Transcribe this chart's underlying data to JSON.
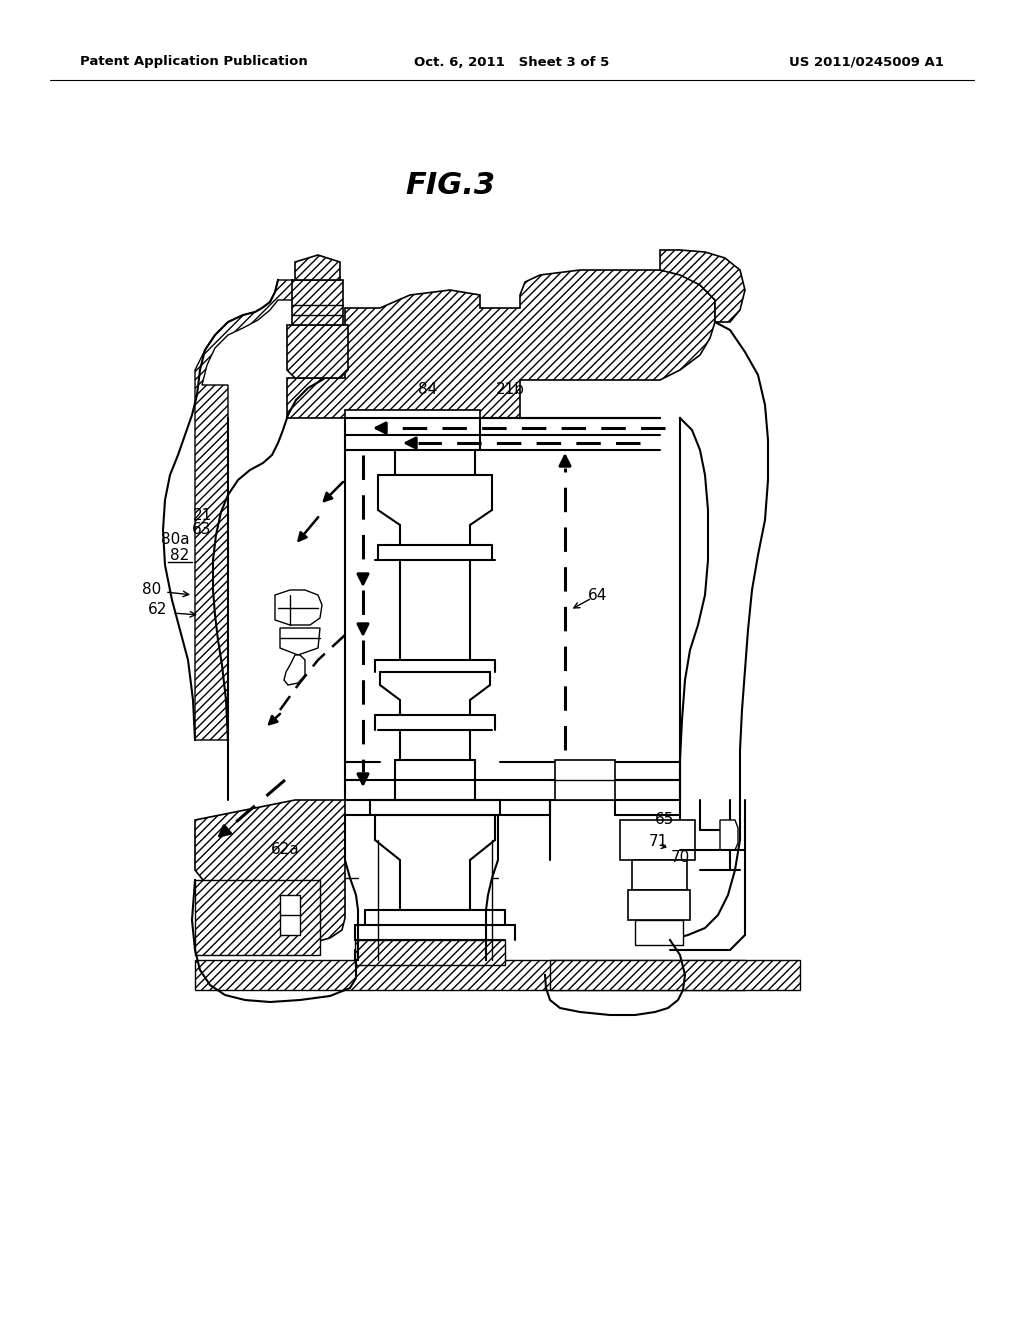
{
  "bg_color": "#ffffff",
  "header_left": "Patent Application Publication",
  "header_center": "Oct. 6, 2011   Sheet 3 of 5",
  "header_right": "US 2011/0245009 A1",
  "fig_label": "FIG.3"
}
